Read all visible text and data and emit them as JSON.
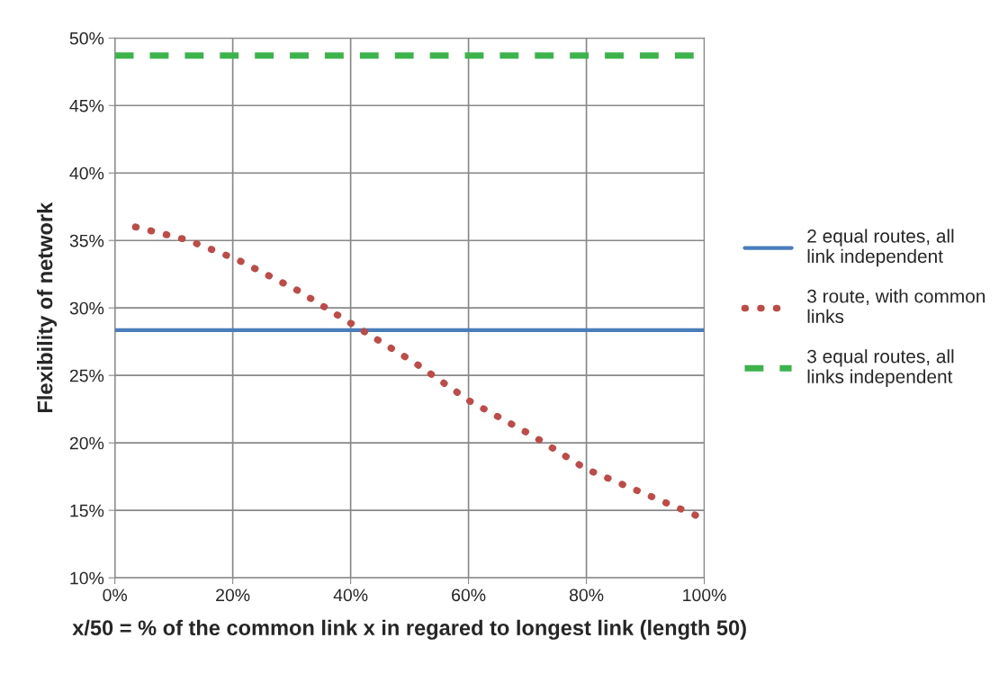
{
  "chart_data": {
    "type": "line",
    "xlabel": "x/50 = % of the common link x in regared to longest link (length 50)",
    "ylabel": "Flexibility of network",
    "series": [
      {
        "name": "2 equal routes, all link independent",
        "color": "#4a7ebb",
        "line_style": "solid",
        "x": [
          0,
          100
        ],
        "values": [
          28.35,
          28.35
        ]
      },
      {
        "name": "3 route, with common links",
        "color": "#be4b48",
        "line_style": "dotted",
        "x": [
          3.5,
          12.2,
          20.7,
          31.0,
          41.0,
          51.0,
          60.2,
          71.0,
          80.0,
          89.5,
          100
        ],
        "values": [
          36.0,
          35.05,
          33.6,
          31.3,
          28.6,
          25.9,
          23.1,
          20.5,
          18.05,
          16.3,
          14.36
        ]
      },
      {
        "name": "3 equal routes, all links independent",
        "color": "#3cb44b",
        "line_style": "dashed",
        "x": [
          0,
          100
        ],
        "values": [
          48.7,
          48.7
        ]
      }
    ],
    "xlim": [
      0,
      100
    ],
    "xticks": [
      {
        "value": 0,
        "label": "0%"
      },
      {
        "value": 20,
        "label": "20%"
      },
      {
        "value": 40,
        "label": "40%"
      },
      {
        "value": 60,
        "label": "60%"
      },
      {
        "value": 80,
        "label": "80%"
      },
      {
        "value": 100,
        "label": "100%"
      }
    ],
    "ylim": [
      10,
      50
    ],
    "yticks": [
      {
        "value": 10,
        "label": "10%"
      },
      {
        "value": 15,
        "label": "15%"
      },
      {
        "value": 20,
        "label": "20%"
      },
      {
        "value": 25,
        "label": "25%"
      },
      {
        "value": 30,
        "label": "30%"
      },
      {
        "value": 35,
        "label": "35%"
      },
      {
        "value": 40,
        "label": "40%"
      },
      {
        "value": 45,
        "label": "45%"
      },
      {
        "value": 50,
        "label": "50%"
      }
    ],
    "grid": true,
    "legend": "right"
  }
}
